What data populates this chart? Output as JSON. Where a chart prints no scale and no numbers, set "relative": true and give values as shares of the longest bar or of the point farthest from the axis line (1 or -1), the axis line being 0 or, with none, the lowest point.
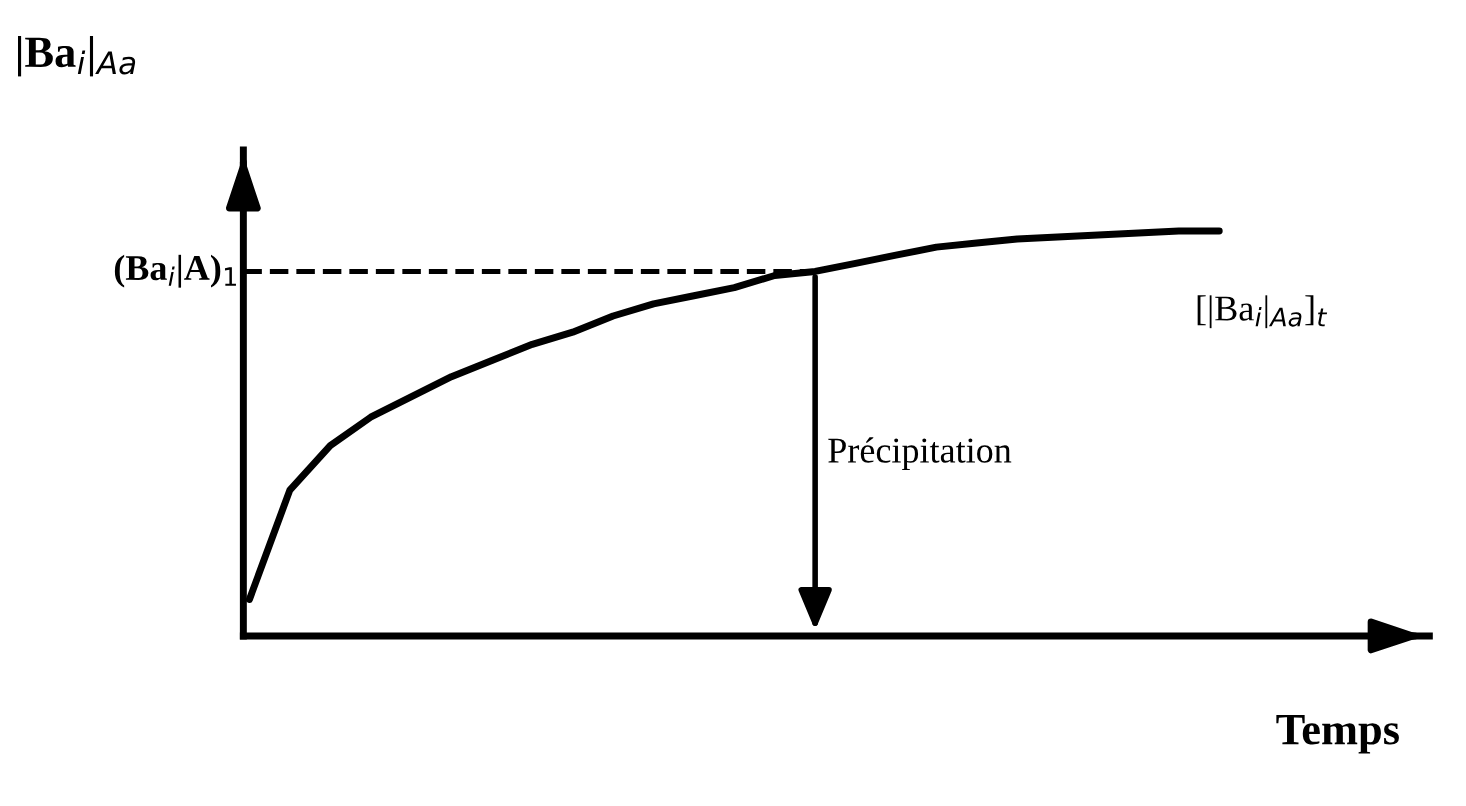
{
  "chart_data": {
    "type": "line",
    "relative": true,
    "xlabel": "Temps",
    "ylabel": "|Ba$_{i}$|$_{Aa}$",
    "categories": [
      null,
      null,
      null,
      null,
      null,
      null,
      null,
      null,
      null,
      null,
      null,
      null,
      null,
      null,
      null,
      null,
      null,
      null,
      null,
      null,
      null,
      null,
      null,
      null,
      null
    ],
    "series": [
      {
        "name": "[|Ba$_{i}$|$_{Aa}$]$_{t}$",
        "color": "#000000",
        "values": [
          0.09,
          0.36,
          0.47,
          0.54,
          0.59,
          0.64,
          0.68,
          0.72,
          0.75,
          0.79,
          0.82,
          0.84,
          0.86,
          0.89,
          0.9,
          0.92,
          0.94,
          0.96,
          0.97,
          0.98,
          0.985,
          0.99,
          0.995,
          1.0,
          1.0
        ]
      }
    ],
    "ref_lines": [
      {
        "axis": "y",
        "value": 0.9,
        "label": "(Ba$_{i}$|A)$_{1}$",
        "line_style": "dashed",
        "color": "#000000"
      }
    ],
    "annotations": [
      "Précipitation"
    ],
    "legend": false,
    "marker": "none",
    "line_style": "solid"
  }
}
